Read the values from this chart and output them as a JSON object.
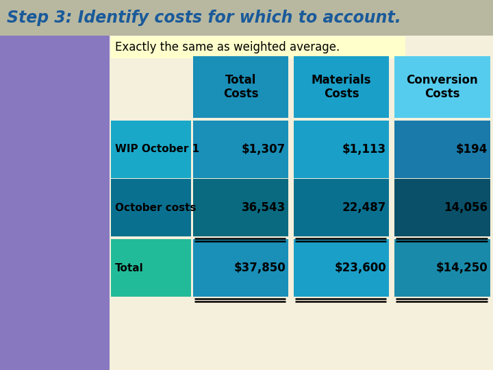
{
  "title": "Step 3: Identify costs for which to account.",
  "subtitle": "Exactly the same as weighted average.",
  "bg_color": "#f5f0dc",
  "title_bg": "#b8b8a0",
  "title_color": "#1a5a9a",
  "subtitle_bg": "#ffffcc",
  "left_panel_color": "#8878c0",
  "left_panel2_color": "#6060a8",
  "col_headers": [
    "Total\nCosts",
    "Materials\nCosts",
    "Conversion\nCosts"
  ],
  "col_header_colors": [
    "#1a8fb8",
    "#1a9fc8",
    "#55ccee"
  ],
  "rows": [
    {
      "label": "WIP October 1",
      "label_bg": "#1aa8c8",
      "values": [
        "$1,307",
        "$1,113",
        "$194"
      ],
      "value_bgs": [
        "#1a8fb8",
        "#1a9fc8",
        "#1a7aaa"
      ]
    },
    {
      "label": "October costs",
      "label_bg": "#0a7090",
      "values": [
        "36,543",
        "22,487",
        "14,056"
      ],
      "value_bgs": [
        "#0a6a80",
        "#0a7090",
        "#0a5068"
      ]
    },
    {
      "label": "Total",
      "label_bg": "#22bb99",
      "values": [
        "$37,850",
        "$23,600",
        "$14,250"
      ],
      "value_bgs": [
        "#1a8fb8",
        "#1a9fc8",
        "#1a8aaa"
      ]
    }
  ],
  "double_underline_rows": [
    1,
    2
  ]
}
